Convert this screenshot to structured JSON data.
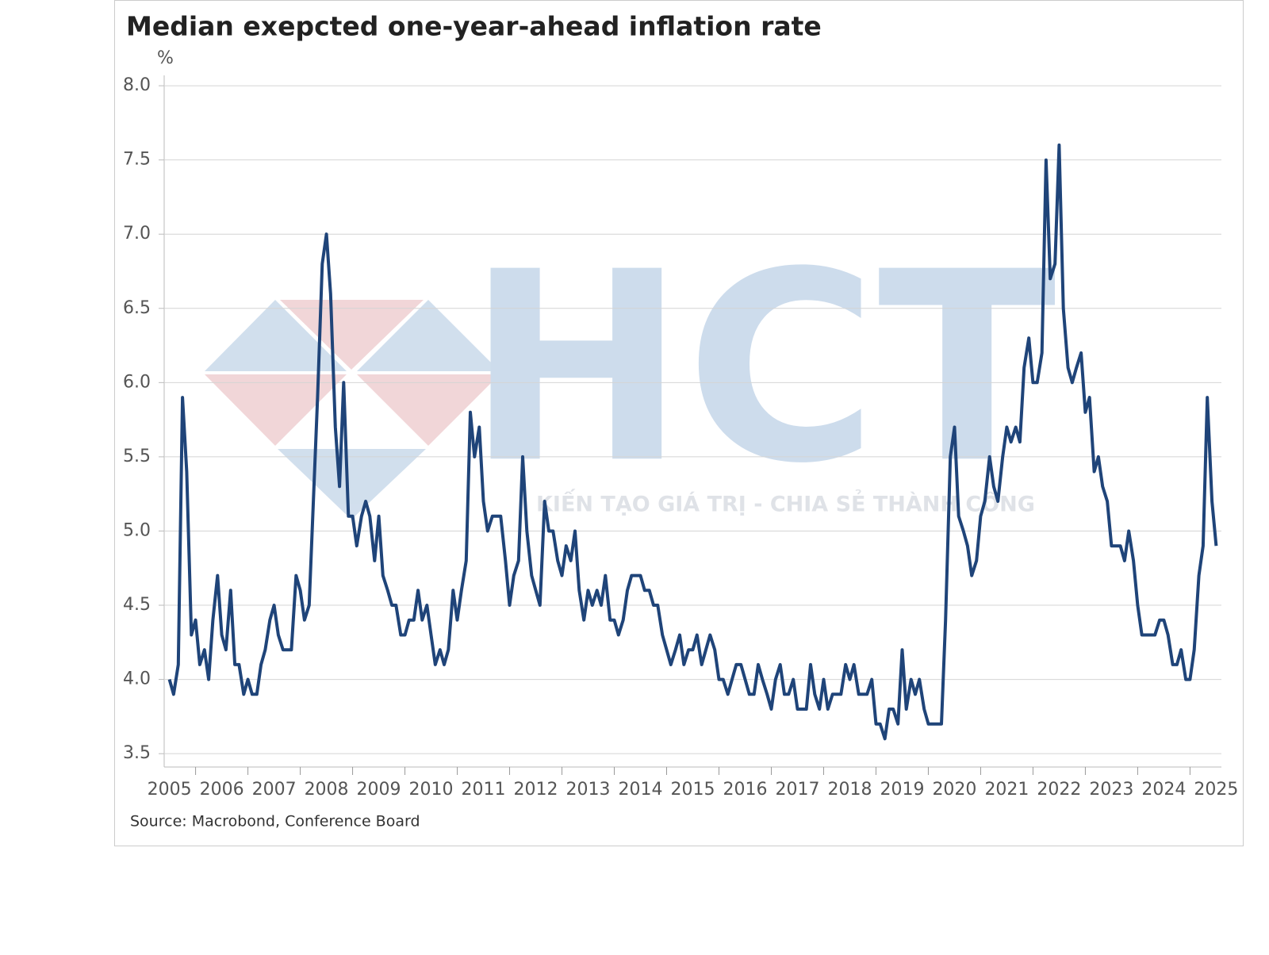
{
  "chart_data": {
    "type": "line",
    "title": "Median exepcted one-year-ahead inflation rate",
    "y_unit": "%",
    "source": "Source: Macrobond, Conference Board",
    "watermark": "HCT",
    "watermark_tagline": "KIẾN TẠO GIÁ TRỊ - CHIA SẺ THÀNH CÔNG",
    "x": [
      2005.5,
      2005.58,
      2005.67,
      2005.75,
      2005.83,
      2005.92,
      2006.0,
      2006.08,
      2006.17,
      2006.25,
      2006.33,
      2006.42,
      2006.5,
      2006.58,
      2006.67,
      2006.75,
      2006.83,
      2006.92,
      2007.0,
      2007.08,
      2007.17,
      2007.25,
      2007.33,
      2007.42,
      2007.5,
      2007.58,
      2007.67,
      2007.75,
      2007.83,
      2007.92,
      2008.0,
      2008.08,
      2008.17,
      2008.25,
      2008.33,
      2008.42,
      2008.5,
      2008.58,
      2008.67,
      2008.75,
      2008.83,
      2008.92,
      2009.0,
      2009.08,
      2009.17,
      2009.25,
      2009.33,
      2009.42,
      2009.5,
      2009.58,
      2009.67,
      2009.75,
      2009.83,
      2009.92,
      2010.0,
      2010.08,
      2010.17,
      2010.25,
      2010.33,
      2010.42,
      2010.5,
      2010.58,
      2010.67,
      2010.75,
      2010.83,
      2010.92,
      2011.0,
      2011.08,
      2011.17,
      2011.25,
      2011.33,
      2011.42,
      2011.5,
      2011.58,
      2011.67,
      2011.75,
      2011.83,
      2011.92,
      2012.0,
      2012.08,
      2012.17,
      2012.25,
      2012.33,
      2012.42,
      2012.5,
      2012.58,
      2012.67,
      2012.75,
      2012.83,
      2012.92,
      2013.0,
      2013.08,
      2013.17,
      2013.25,
      2013.33,
      2013.42,
      2013.5,
      2013.58,
      2013.67,
      2013.75,
      2013.83,
      2013.92,
      2014.0,
      2014.08,
      2014.17,
      2014.25,
      2014.33,
      2014.42,
      2014.5,
      2014.58,
      2014.67,
      2014.75,
      2014.83,
      2014.92,
      2015.0,
      2015.08,
      2015.17,
      2015.25,
      2015.33,
      2015.42,
      2015.5,
      2015.58,
      2015.67,
      2015.75,
      2015.83,
      2015.92,
      2016.0,
      2016.08,
      2016.17,
      2016.25,
      2016.33,
      2016.42,
      2016.5,
      2016.58,
      2016.67,
      2016.75,
      2016.83,
      2016.92,
      2017.0,
      2017.08,
      2017.17,
      2017.25,
      2017.33,
      2017.42,
      2017.5,
      2017.58,
      2017.67,
      2017.75,
      2017.83,
      2017.92,
      2018.0,
      2018.08,
      2018.17,
      2018.25,
      2018.33,
      2018.42,
      2018.5,
      2018.58,
      2018.67,
      2018.75,
      2018.83,
      2018.92,
      2019.0,
      2019.08,
      2019.17,
      2019.25,
      2019.33,
      2019.42,
      2019.5,
      2019.58,
      2019.67,
      2019.75,
      2019.83,
      2019.92,
      2020.0,
      2020.08,
      2020.17,
      2020.25,
      2020.33,
      2020.42,
      2020.5,
      2020.58,
      2020.67,
      2020.75,
      2020.83,
      2020.92,
      2021.0,
      2021.08,
      2021.17,
      2021.25,
      2021.33,
      2021.42,
      2021.5,
      2021.58,
      2021.67,
      2021.75,
      2021.83,
      2021.92,
      2022.0,
      2022.08,
      2022.17,
      2022.25,
      2022.33,
      2022.42,
      2022.5,
      2022.58,
      2022.67,
      2022.75,
      2022.83,
      2022.92,
      2023.0,
      2023.08,
      2023.17,
      2023.25,
      2023.33,
      2023.42,
      2023.5,
      2023.58,
      2023.67,
      2023.75,
      2023.83,
      2023.92,
      2024.0,
      2024.08,
      2024.17,
      2024.25,
      2024.33,
      2024.42,
      2024.5,
      2024.58,
      2024.67,
      2024.75,
      2024.83,
      2024.92,
      2025.0,
      2025.08,
      2025.17,
      2025.25,
      2025.33,
      2025.42,
      2025.5
    ],
    "series": [
      {
        "color": "#1f4479",
        "values": [
          4.0,
          3.9,
          4.1,
          5.9,
          5.4,
          4.3,
          4.4,
          4.1,
          4.2,
          4.0,
          4.4,
          4.7,
          4.3,
          4.2,
          4.6,
          4.1,
          4.1,
          3.9,
          4.0,
          3.9,
          3.9,
          4.1,
          4.2,
          4.4,
          4.5,
          4.3,
          4.2,
          4.2,
          4.2,
          4.7,
          4.6,
          4.4,
          4.5,
          5.2,
          5.9,
          6.8,
          7.0,
          6.6,
          5.7,
          5.3,
          6.0,
          5.1,
          5.1,
          4.9,
          5.1,
          5.2,
          5.1,
          4.8,
          5.1,
          4.7,
          4.6,
          4.5,
          4.5,
          4.3,
          4.3,
          4.4,
          4.4,
          4.6,
          4.4,
          4.5,
          4.3,
          4.1,
          4.2,
          4.1,
          4.2,
          4.6,
          4.4,
          4.6,
          4.8,
          5.8,
          5.5,
          5.7,
          5.2,
          5.0,
          5.1,
          5.1,
          5.1,
          4.8,
          4.5,
          4.7,
          4.8,
          5.5,
          5.0,
          4.7,
          4.6,
          4.5,
          5.2,
          5.0,
          5.0,
          4.8,
          4.7,
          4.9,
          4.8,
          5.0,
          4.6,
          4.4,
          4.6,
          4.5,
          4.6,
          4.5,
          4.7,
          4.4,
          4.4,
          4.3,
          4.4,
          4.6,
          4.7,
          4.7,
          4.7,
          4.6,
          4.6,
          4.5,
          4.5,
          4.3,
          4.2,
          4.1,
          4.2,
          4.3,
          4.1,
          4.2,
          4.2,
          4.3,
          4.1,
          4.2,
          4.3,
          4.2,
          4.0,
          4.0,
          3.9,
          4.0,
          4.1,
          4.1,
          4.0,
          3.9,
          3.9,
          4.1,
          4.0,
          3.9,
          3.8,
          4.0,
          4.1,
          3.9,
          3.9,
          4.0,
          3.8,
          3.8,
          3.8,
          4.1,
          3.9,
          3.8,
          4.0,
          3.8,
          3.9,
          3.9,
          3.9,
          4.1,
          4.0,
          4.1,
          3.9,
          3.9,
          3.9,
          4.0,
          3.7,
          3.7,
          3.6,
          3.8,
          3.8,
          3.7,
          4.2,
          3.8,
          4.0,
          3.9,
          4.0,
          3.8,
          3.7,
          3.7,
          3.7,
          3.7,
          4.4,
          5.5,
          5.7,
          5.1,
          5.0,
          4.9,
          4.7,
          4.8,
          5.1,
          5.2,
          5.5,
          5.3,
          5.2,
          5.5,
          5.7,
          5.6,
          5.7,
          5.6,
          6.1,
          6.3,
          6.0,
          6.0,
          6.2,
          7.5,
          6.7,
          6.8,
          7.6,
          6.5,
          6.1,
          6.0,
          6.1,
          6.2,
          5.8,
          5.9,
          5.4,
          5.5,
          5.3,
          5.2,
          4.9,
          4.9,
          4.9,
          4.8,
          5.0,
          4.8,
          4.5,
          4.3,
          4.3,
          4.3,
          4.3,
          4.4,
          4.4,
          4.3,
          4.1,
          4.1,
          4.2,
          4.0,
          4.0,
          4.2,
          4.7,
          4.9,
          5.9,
          5.2,
          4.9
        ]
      }
    ],
    "xlim": [
      2005.4,
      2025.6
    ],
    "xticks": [
      2005,
      2006,
      2007,
      2008,
      2009,
      2010,
      2011,
      2012,
      2013,
      2014,
      2015,
      2016,
      2017,
      2018,
      2019,
      2020,
      2021,
      2022,
      2023,
      2024,
      2025
    ],
    "ylim": [
      3.41,
      8.07
    ],
    "yticks": [
      3.5,
      {
        "value": 4,
        "label": "4.0"
      },
      4.5,
      {
        "value": 5,
        "label": "5.0"
      },
      5.5,
      {
        "value": 6,
        "label": "6.0"
      },
      6.5,
      {
        "value": 7,
        "label": "7.0"
      },
      7.5,
      {
        "value": 8,
        "label": "8.0"
      }
    ],
    "grid": true
  }
}
